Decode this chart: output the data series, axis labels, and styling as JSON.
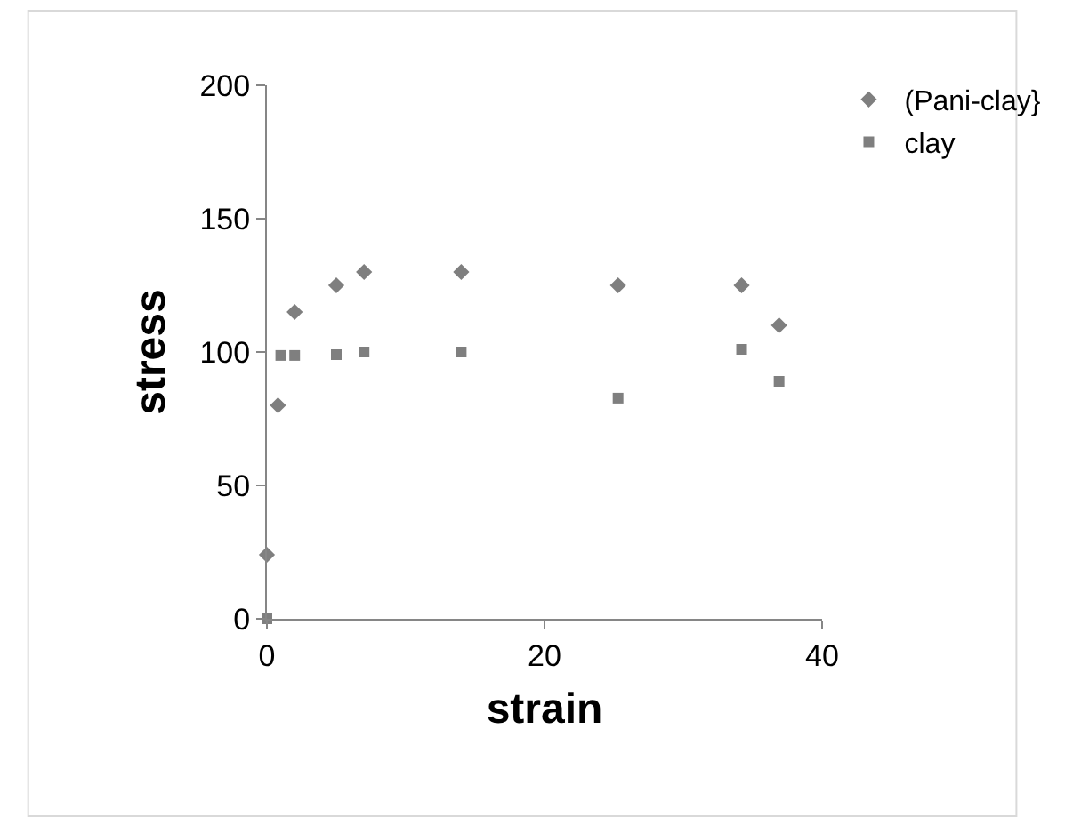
{
  "chart_data": {
    "type": "scatter",
    "xlabel": "strain",
    "ylabel": "stress",
    "xlim": [
      0,
      40
    ],
    "xticks": [
      0,
      20,
      40
    ],
    "ylim": [
      0,
      200
    ],
    "yticks": [
      0,
      50,
      100,
      150,
      200
    ],
    "legend": "top right",
    "series": [
      {
        "name": "(Pani-clay}",
        "color": "#7f7f7f",
        "marker": "diamond",
        "x": [
          0,
          0.8,
          2,
          5,
          7,
          14,
          25.3,
          34.2,
          36.9
        ],
        "values": [
          24,
          80,
          115,
          125,
          130,
          130,
          125,
          125,
          110
        ]
      },
      {
        "name": "clay",
        "color": "#7f7f7f",
        "marker": "square",
        "x": [
          0,
          1,
          2,
          5,
          7,
          14,
          25.3,
          34.2,
          36.9
        ],
        "values": [
          0,
          98.7,
          98.7,
          99,
          100,
          100,
          82.7,
          101,
          89
        ]
      }
    ]
  }
}
